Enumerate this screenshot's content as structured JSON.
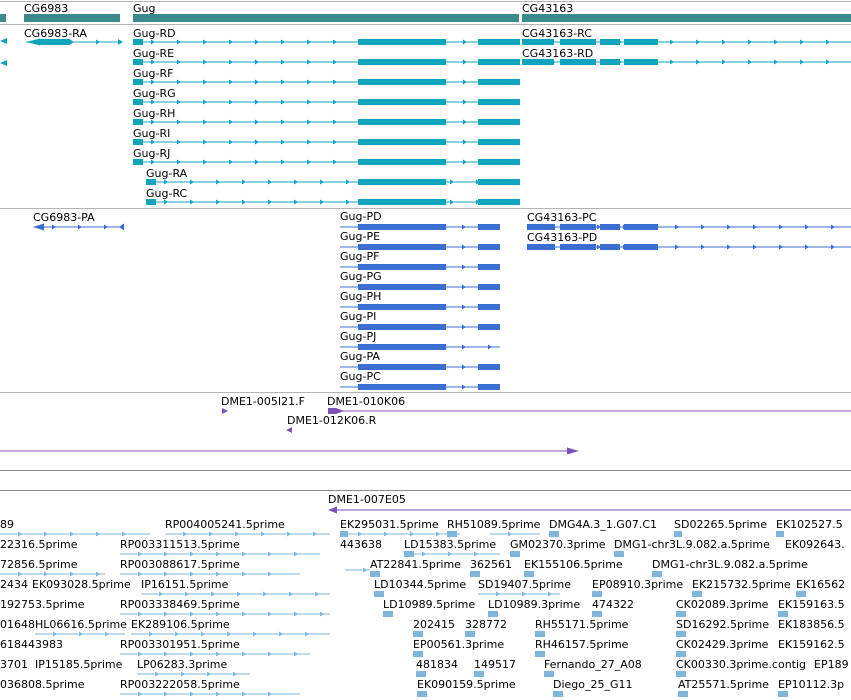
{
  "colors": {
    "gene": "#3b8b8d",
    "transcript": "#10a5bd",
    "protein": "#3a6fd1",
    "clone": "#7a52b8",
    "est": "#7fb6dc",
    "divider": "#b4b4b4",
    "guide": "#6f6f6f"
  },
  "genes": [
    {
      "label": "CG6983"
    },
    {
      "label": "Gug"
    },
    {
      "label": "CG43163"
    }
  ],
  "transcripts": [
    {
      "label": "CG6983-RA"
    },
    {
      "label": "Gug-RD"
    },
    {
      "label": "Gug-RE"
    },
    {
      "label": "Gug-RF"
    },
    {
      "label": "Gug-RG"
    },
    {
      "label": "Gug-RH"
    },
    {
      "label": "Gug-RI"
    },
    {
      "label": "Gug-RJ"
    },
    {
      "label": "Gug-RA"
    },
    {
      "label": "Gug-RC"
    },
    {
      "label": "CG43163-RC"
    },
    {
      "label": "CG43163-RD"
    }
  ],
  "proteins": [
    {
      "label": "CG6983-PA"
    },
    {
      "label": "Gug-PD"
    },
    {
      "label": "Gug-PE"
    },
    {
      "label": "Gug-PF"
    },
    {
      "label": "Gug-PG"
    },
    {
      "label": "Gug-PH"
    },
    {
      "label": "Gug-PI"
    },
    {
      "label": "Gug-PJ"
    },
    {
      "label": "Gug-PA"
    },
    {
      "label": "Gug-PC"
    },
    {
      "label": "CG43163-PC"
    },
    {
      "label": "CG43163-PD"
    }
  ],
  "clones": [
    {
      "label": "DME1-005I21.F"
    },
    {
      "label": "DME1-010K06"
    },
    {
      "label": "DME1-012K06.R"
    },
    {
      "label": "DME1-007E05"
    }
  ],
  "ests": [
    {
      "label": "89"
    },
    {
      "label": "RP004005241.5prime"
    },
    {
      "label": "EK295031.5prime"
    },
    {
      "label": "RH51089.5prime"
    },
    {
      "label": "DMG4A.3_1.G07.C1"
    },
    {
      "label": "SD02265.5prime"
    },
    {
      "label": "EK102527.5"
    },
    {
      "label": "22316.5prime"
    },
    {
      "label": "RP003311513.5prime"
    },
    {
      "label": "443638"
    },
    {
      "label": "LD15383.5prime"
    },
    {
      "label": "GM02370.3prime"
    },
    {
      "label": "DMG1-chr3L.9.082.a.5prime"
    },
    {
      "label": "EK092643."
    },
    {
      "label": "72856.5prime"
    },
    {
      "label": "RP003088617.5prime"
    },
    {
      "label": "AT22841.5prime"
    },
    {
      "label": "362561"
    },
    {
      "label": "EK155106.5prime"
    },
    {
      "label": "DMG1-chr3L.9.082.a.5prime"
    },
    {
      "label": "2434"
    },
    {
      "label": "EK093028.5prime"
    },
    {
      "label": "IP16151.5prime"
    },
    {
      "label": "LD10344.5prime"
    },
    {
      "label": "SD19407.5prime"
    },
    {
      "label": "EP08910.3prime"
    },
    {
      "label": "EK215732.5prime"
    },
    {
      "label": "EK16562"
    },
    {
      "label": "192753.5prime"
    },
    {
      "label": "RP003338469.5prime"
    },
    {
      "label": "LD10989.5prime"
    },
    {
      "label": "LD10989.3prime"
    },
    {
      "label": "474322"
    },
    {
      "label": "CK02089.3prime"
    },
    {
      "label": "EK159163.5"
    },
    {
      "label": "01648"
    },
    {
      "label": "HL06616.5prime"
    },
    {
      "label": "EK289106.5prime"
    },
    {
      "label": "202415"
    },
    {
      "label": "328772"
    },
    {
      "label": "RH55171.5prime"
    },
    {
      "label": "SD16292.5prime"
    },
    {
      "label": "EK183856.5"
    },
    {
      "label": "618443983"
    },
    {
      "label": "RP003301951.5prime"
    },
    {
      "label": "EP00561.3prime"
    },
    {
      "label": "RH46157.5prime"
    },
    {
      "label": "CK02429.3prime"
    },
    {
      "label": "EK159162.5"
    },
    {
      "label": "3701"
    },
    {
      "label": "IP15185.5prime"
    },
    {
      "label": "LP06283.3prime"
    },
    {
      "label": "481834"
    },
    {
      "label": "149517"
    },
    {
      "label": "Fernando_27_A08"
    },
    {
      "label": "CK00330.3prime.contig"
    },
    {
      "label": "EP189"
    },
    {
      "label": "036808.5prime"
    },
    {
      "label": "RP003222058.5prime"
    },
    {
      "label": "EK090159.5prime"
    },
    {
      "label": "Diego_25_G11"
    },
    {
      "label": "AT25571.5prime"
    },
    {
      "label": "EP10112.3p"
    }
  ]
}
